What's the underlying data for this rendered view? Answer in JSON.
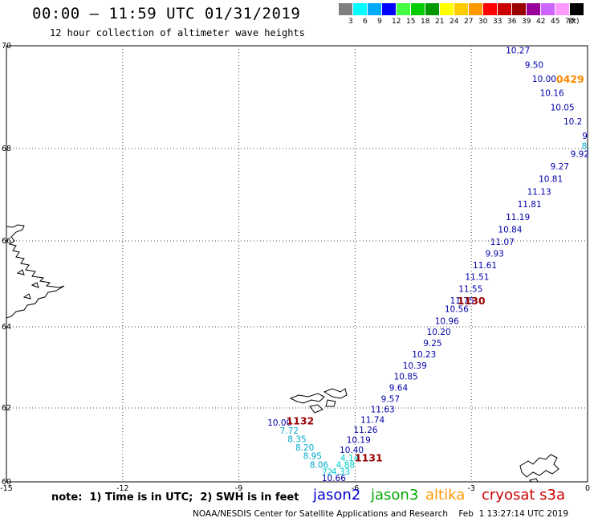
{
  "header": {
    "title": "00:00 – 11:59 UTC 01/31/2019",
    "subtitle": "12 hour collection of altimeter wave heights"
  },
  "color_scale": {
    "labels": [
      "3",
      "6",
      "9",
      "12",
      "15",
      "18",
      "21",
      "24",
      "27",
      "30",
      "33",
      "36",
      "39",
      "42",
      "45",
      "70",
      "(ft)"
    ],
    "colors": [
      "#808080",
      "#00ffff",
      "#00aaff",
      "#0000ff",
      "#44ff44",
      "#00cc00",
      "#009900",
      "#ffff00",
      "#ffcc00",
      "#ff9900",
      "#ff0000",
      "#cc0000",
      "#990000",
      "#990099",
      "#cc66ff",
      "#ff99ff",
      "#000000"
    ]
  },
  "axes": {
    "lon_ticks": [
      -15,
      -12,
      -9,
      -6,
      -3,
      0
    ],
    "lat_ticks": [
      60,
      62,
      64,
      66,
      68,
      70
    ],
    "lon_labels": [
      "-15",
      "-12",
      "-9",
      "-6",
      "-3",
      "0"
    ],
    "lat_labels": [
      "60",
      "62",
      "64",
      "66",
      "68",
      "70"
    ]
  },
  "measurements": [
    {
      "text": "10.27",
      "c": "#0000aa",
      "lon": -1.8,
      "lat": 69.85
    },
    {
      "text": "9.50",
      "c": "#0000aa",
      "lon": -1.38,
      "lat": 69.57
    },
    {
      "text": "10.00",
      "c": "#0000aa",
      "lon": -1.12,
      "lat": 69.3
    },
    {
      "text": "10.16",
      "c": "#0000aa",
      "lon": -0.92,
      "lat": 69.02
    },
    {
      "text": "10.05",
      "c": "#0000aa",
      "lon": -0.65,
      "lat": 68.74
    },
    {
      "text": "10.2",
      "c": "#0000aa",
      "lon": -0.38,
      "lat": 68.47
    },
    {
      "text": "9",
      "c": "#0000aa",
      "lon": -0.07,
      "lat": 68.19
    },
    {
      "text": "8.",
      "c": "#00aacc",
      "lon": -0.05,
      "lat": 67.99
    },
    {
      "text": "9.92",
      "c": "#0000aa",
      "lon": -0.2,
      "lat": 67.82
    },
    {
      "text": "9.27",
      "c": "#0000aa",
      "lon": -0.72,
      "lat": 67.55
    },
    {
      "text": "10.81",
      "c": "#0000aa",
      "lon": -0.95,
      "lat": 67.28
    },
    {
      "text": "11.13",
      "c": "#0000aa",
      "lon": -1.25,
      "lat": 67.0
    },
    {
      "text": "11.81",
      "c": "#0000aa",
      "lon": -1.5,
      "lat": 66.73
    },
    {
      "text": "11.19",
      "c": "#0000aa",
      "lon": -1.8,
      "lat": 66.45
    },
    {
      "text": "10.84",
      "c": "#0000aa",
      "lon": -2.0,
      "lat": 66.18
    },
    {
      "text": "11.07",
      "c": "#0000aa",
      "lon": -2.2,
      "lat": 65.91
    },
    {
      "text": "9.93",
      "c": "#0000aa",
      "lon": -2.4,
      "lat": 65.64
    },
    {
      "text": "11.61",
      "c": "#0000aa",
      "lon": -2.65,
      "lat": 65.36
    },
    {
      "text": "11.51",
      "c": "#0000aa",
      "lon": -2.85,
      "lat": 65.09
    },
    {
      "text": "11.55",
      "c": "#0000aa",
      "lon": -3.02,
      "lat": 64.81
    },
    {
      "text": "11.75",
      "c": "#0000aa",
      "lon": -3.24,
      "lat": 64.54
    },
    {
      "text": "10.56",
      "c": "#0000aa",
      "lon": -3.38,
      "lat": 64.35
    },
    {
      "text": "10.96",
      "c": "#0000aa",
      "lon": -3.63,
      "lat": 64.07
    },
    {
      "text": "10.20",
      "c": "#0000aa",
      "lon": -3.84,
      "lat": 63.8
    },
    {
      "text": "9.25",
      "c": "#0000aa",
      "lon": -4.0,
      "lat": 63.52
    },
    {
      "text": "10.23",
      "c": "#0000aa",
      "lon": -4.22,
      "lat": 63.25
    },
    {
      "text": "10.39",
      "c": "#0000aa",
      "lon": -4.46,
      "lat": 62.97
    },
    {
      "text": "10.85",
      "c": "#0000aa",
      "lon": -4.69,
      "lat": 62.7
    },
    {
      "text": "9.64",
      "c": "#0000aa",
      "lon": -4.88,
      "lat": 62.43
    },
    {
      "text": "9.57",
      "c": "#0000aa",
      "lon": -5.09,
      "lat": 62.15
    },
    {
      "text": "11.63",
      "c": "#0000aa",
      "lon": -5.29,
      "lat": 61.88
    },
    {
      "text": "11.74",
      "c": "#0000aa",
      "lon": -5.55,
      "lat": 61.6
    },
    {
      "text": "11.26",
      "c": "#0000aa",
      "lon": -5.73,
      "lat": 61.33
    },
    {
      "text": "10.19",
      "c": "#0000aa",
      "lon": -5.91,
      "lat": 61.05
    },
    {
      "text": "10.40",
      "c": "#0000aa",
      "lon": -6.09,
      "lat": 60.78
    },
    {
      "text": "4.14",
      "c": "#00cccc",
      "lon": -6.14,
      "lat": 60.57
    },
    {
      "text": "4.88",
      "c": "#00cccc",
      "lon": -6.25,
      "lat": 60.38
    },
    {
      "text": "4.33",
      "c": "#00cccc",
      "lon": -6.37,
      "lat": 60.2
    },
    {
      "text": "10.66",
      "c": "#0000aa",
      "lon": -6.55,
      "lat": 60.02
    },
    {
      "text": "72",
      "c": "#00cccc",
      "lon": -6.72,
      "lat": 59.82
    },
    {
      "text": "8.06",
      "c": "#00aacc",
      "lon": -6.93,
      "lat": 59.62
    },
    {
      "text": "8.95",
      "c": "#00aacc",
      "lon": -7.1,
      "lat": 59.38
    },
    {
      "text": "8.20",
      "c": "#00aacc",
      "lon": -7.3,
      "lat": 59.15
    },
    {
      "text": "8.35",
      "c": "#00aacc",
      "lon": -7.5,
      "lat": 58.92
    },
    {
      "text": "7.72",
      "c": "#00aacc",
      "lon": -7.7,
      "lat": 58.7
    },
    {
      "text": "10.00",
      "c": "#0000aa",
      "lon": -7.95,
      "lat": 58.48
    }
  ],
  "pass_labels": [
    {
      "text": "0429",
      "c": "#ff8800",
      "lon": -0.45,
      "lat": 69.28
    },
    {
      "text": "1130",
      "c": "#990000",
      "lon": -3.0,
      "lat": 64.52
    },
    {
      "text": "1131",
      "c": "#990000",
      "lon": -5.65,
      "lat": 60.55
    },
    {
      "text": "1132",
      "c": "#990000",
      "lon": -7.42,
      "lat": 58.45
    }
  ],
  "footer": {
    "note": "note:  1) Time is in UTC;  2) SWH is in feet",
    "legend": [
      {
        "label": "jason2",
        "color": "#0000cc"
      },
      {
        "label": "jason3",
        "color": "#00aa00"
      },
      {
        "label": "altika",
        "color": "#ff9900"
      },
      {
        "label": "cryosat s3a",
        "color": "#cc0000"
      }
    ],
    "credit": "NOAA/NESDIS Center for Satellite Applications and Research    Feb  1 13:27:14 UTC 2019"
  }
}
